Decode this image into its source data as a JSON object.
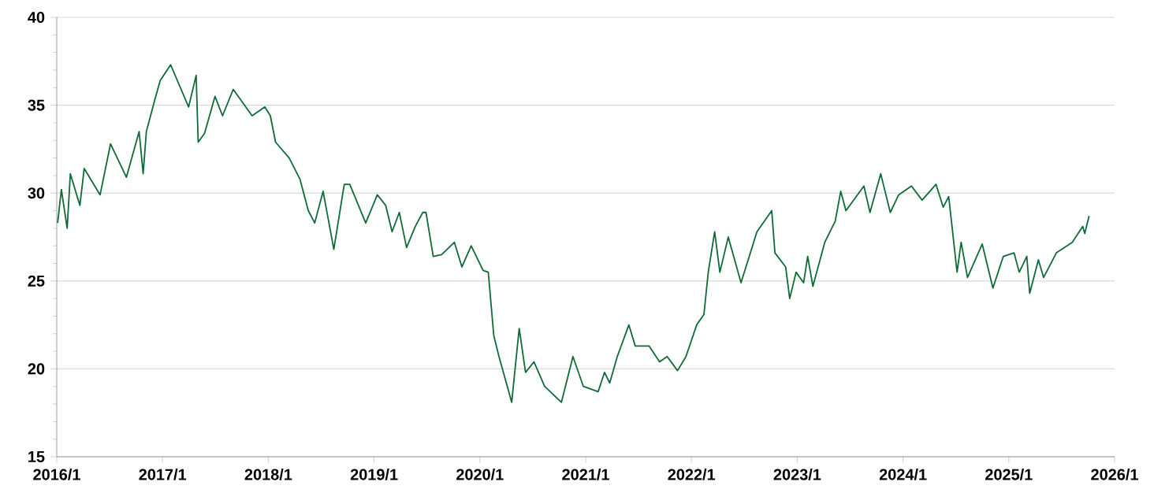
{
  "chart_data": {
    "type": "line",
    "x": [
      "2016-01-04",
      "2016-01-17",
      "2016-02-06",
      "2016-02-17",
      "2016-03-21",
      "2016-04-05",
      "2016-05-30",
      "2016-07-05",
      "2016-08-29",
      "2016-10-12",
      "2016-10-26",
      "2016-11-06",
      "2016-12-05",
      "2016-12-24",
      "2017-01-29",
      "2017-04-01",
      "2017-04-27",
      "2017-05-04",
      "2017-05-26",
      "2017-07-01",
      "2017-07-27",
      "2017-09-02",
      "2017-11-06",
      "2017-12-20",
      "2018-01-08",
      "2018-01-26",
      "2018-03-14",
      "2018-04-20",
      "2018-05-19",
      "2018-06-10",
      "2018-07-09",
      "2018-08-15",
      "2018-09-20",
      "2018-10-09",
      "2018-12-03",
      "2019-01-12",
      "2019-02-10",
      "2019-03-04",
      "2019-03-29",
      "2019-04-23",
      "2019-05-23",
      "2019-06-18",
      "2019-06-29",
      "2019-07-24",
      "2019-08-22",
      "2019-10-05",
      "2019-10-31",
      "2019-12-02",
      "2020-01-12",
      "2020-01-30",
      "2020-02-18",
      "2020-03-07",
      "2020-04-20",
      "2020-05-16",
      "2020-06-07",
      "2020-07-06",
      "2020-08-12",
      "2020-10-09",
      "2020-11-18",
      "2020-12-24",
      "2021-02-13",
      "2021-03-07",
      "2021-03-25",
      "2021-04-20",
      "2021-05-30",
      "2021-06-21",
      "2021-08-08",
      "2021-09-13",
      "2021-10-09",
      "2021-11-14",
      "2021-12-13",
      "2022-01-19",
      "2022-02-13",
      "2022-02-28",
      "2022-03-22",
      "2022-04-09",
      "2022-05-08",
      "2022-06-21",
      "2022-08-15",
      "2022-10-05",
      "2022-10-16",
      "2022-11-22",
      "2022-12-06",
      "2022-12-28",
      "2023-01-23",
      "2023-02-06",
      "2023-02-24",
      "2023-04-06",
      "2023-05-12",
      "2023-05-31",
      "2023-06-18",
      "2023-08-19",
      "2023-09-09",
      "2023-10-16",
      "2023-11-18",
      "2023-12-17",
      "2024-01-30",
      "2024-03-07",
      "2024-04-24",
      "2024-05-19",
      "2024-06-07",
      "2024-07-06",
      "2024-07-20",
      "2024-08-11",
      "2024-10-01",
      "2024-11-07",
      "2024-12-13",
      "2025-01-19",
      "2025-02-06",
      "2025-03-04",
      "2025-03-14",
      "2025-04-13",
      "2025-05-01",
      "2025-06-14",
      "2025-08-08",
      "2025-09-13",
      "2025-09-20",
      "2025-10-05"
    ],
    "series": [
      {
        "color": "#0f6b36",
        "values": [
          28.3,
          30.2,
          28.0,
          31.1,
          29.3,
          31.4,
          29.9,
          32.8,
          30.9,
          33.5,
          31.1,
          33.5,
          35.3,
          36.4,
          37.3,
          34.9,
          36.7,
          32.9,
          33.4,
          35.5,
          34.4,
          35.9,
          34.4,
          34.9,
          34.4,
          32.9,
          32.0,
          30.8,
          29.0,
          28.3,
          30.1,
          26.8,
          30.5,
          30.5,
          28.3,
          29.9,
          29.3,
          27.8,
          28.9,
          26.9,
          28.1,
          28.9,
          28.9,
          26.4,
          26.5,
          27.2,
          25.8,
          27.0,
          25.6,
          25.5,
          21.9,
          20.7,
          18.1,
          22.3,
          19.8,
          20.4,
          19.0,
          18.1,
          20.7,
          19.0,
          18.7,
          19.8,
          19.2,
          20.7,
          22.5,
          21.3,
          21.3,
          20.4,
          20.7,
          19.9,
          20.7,
          22.5,
          23.1,
          25.5,
          27.8,
          25.5,
          27.5,
          24.9,
          27.8,
          29.0,
          26.6,
          25.8,
          24.0,
          25.5,
          24.9,
          26.4,
          24.7,
          27.2,
          28.4,
          30.1,
          29.0,
          30.4,
          28.9,
          31.1,
          28.9,
          29.9,
          30.4,
          29.6,
          30.5,
          29.2,
          29.8,
          25.5,
          27.2,
          25.2,
          27.1,
          24.6,
          26.4,
          26.6,
          25.5,
          26.4,
          24.3,
          26.2,
          25.2,
          26.6,
          27.2,
          28.1,
          27.7,
          28.7
        ]
      }
    ],
    "xlim": [
      "2016-01",
      "2026-01"
    ],
    "xticks": [
      {
        "value": "2016-01",
        "label": "2016/1"
      },
      {
        "value": "2017-01",
        "label": "2017/1"
      },
      {
        "value": "2018-01",
        "label": "2018/1"
      },
      {
        "value": "2019-01",
        "label": "2019/1"
      },
      {
        "value": "2020-01",
        "label": "2020/1"
      },
      {
        "value": "2021-01",
        "label": "2021/1"
      },
      {
        "value": "2022-01",
        "label": "2022/1"
      },
      {
        "value": "2023-01",
        "label": "2023/1"
      },
      {
        "value": "2024-01",
        "label": "2024/1"
      },
      {
        "value": "2025-01",
        "label": "2025/1"
      },
      {
        "value": "2026-01",
        "label": "2026/1"
      }
    ],
    "ylim": [
      15,
      40
    ],
    "yticks": [
      15,
      20,
      25,
      30,
      35,
      40
    ],
    "grid": "y",
    "marker": "none",
    "line_style": "solid"
  }
}
